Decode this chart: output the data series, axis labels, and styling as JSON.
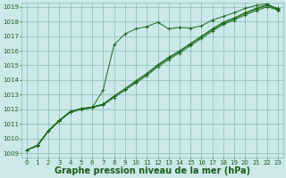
{
  "title": "Graphe pression niveau de la mer (hPa)",
  "xlabel_hours": [
    0,
    1,
    2,
    3,
    4,
    5,
    6,
    7,
    8,
    9,
    10,
    11,
    12,
    13,
    14,
    15,
    16,
    17,
    18,
    19,
    20,
    21,
    22,
    23
  ],
  "series": [
    [
      1009.2,
      1009.5,
      1010.5,
      1011.2,
      1011.8,
      1012.0,
      1012.1,
      1013.3,
      1016.4,
      1017.15,
      1017.5,
      1017.65,
      1017.95,
      1017.5,
      1017.6,
      1017.55,
      1017.7,
      1018.1,
      1018.35,
      1018.6,
      1018.9,
      1019.1,
      1019.2,
      1018.75
    ],
    [
      1009.2,
      1009.5,
      1010.5,
      1011.2,
      1011.8,
      1012.0,
      1012.1,
      1012.3,
      1012.8,
      1013.3,
      1013.8,
      1014.3,
      1014.9,
      1015.4,
      1015.85,
      1016.35,
      1016.85,
      1017.35,
      1017.8,
      1018.1,
      1018.45,
      1018.75,
      1019.0,
      1018.8
    ],
    [
      1009.2,
      1009.55,
      1010.55,
      1011.25,
      1011.85,
      1012.05,
      1012.15,
      1012.35,
      1012.9,
      1013.4,
      1013.9,
      1014.4,
      1015.0,
      1015.5,
      1015.95,
      1016.45,
      1016.95,
      1017.45,
      1017.9,
      1018.2,
      1018.55,
      1018.85,
      1019.1,
      1018.85
    ],
    [
      1009.2,
      1009.55,
      1010.55,
      1011.25,
      1011.85,
      1012.05,
      1012.15,
      1012.35,
      1012.9,
      1013.4,
      1013.95,
      1014.45,
      1015.05,
      1015.55,
      1016.0,
      1016.5,
      1017.0,
      1017.5,
      1017.95,
      1018.25,
      1018.6,
      1018.9,
      1019.15,
      1018.9
    ]
  ],
  "line_color": "#1a6b1a",
  "marker_color": "#1a6b1a",
  "bg_color": "#cce8e8",
  "grid_color": "#88bbbb",
  "text_color": "#1a5c1a",
  "ylim_min": 1009,
  "ylim_max": 1019,
  "yticks": [
    1009,
    1010,
    1011,
    1012,
    1013,
    1014,
    1015,
    1016,
    1017,
    1018,
    1019
  ],
  "title_fontsize": 7.0,
  "tick_fontsize": 5.0,
  "title_fontweight": "bold"
}
